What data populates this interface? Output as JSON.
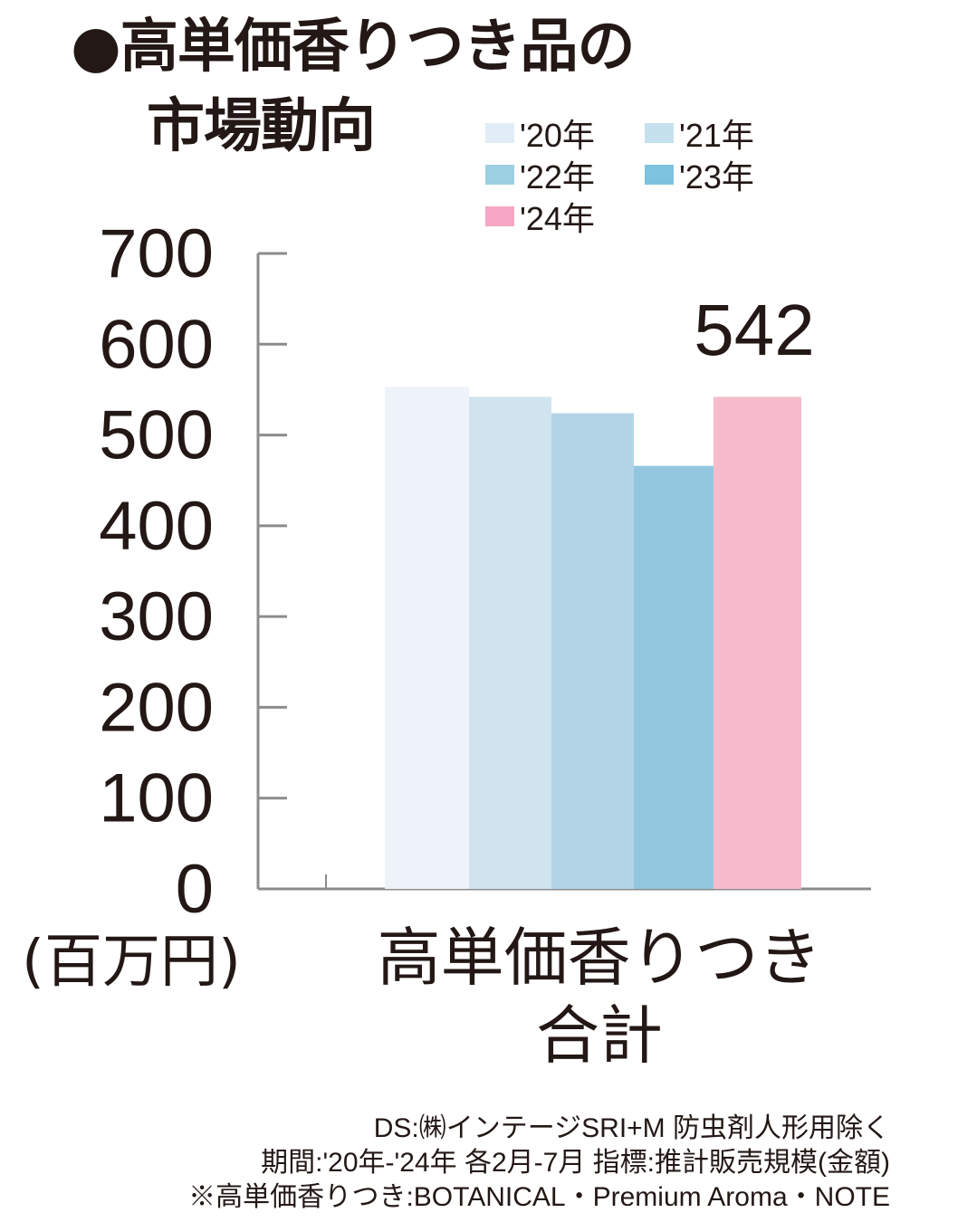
{
  "title": {
    "bullet": "●",
    "line1": "高単価香りつき品の",
    "line2": "市場動向"
  },
  "chart_data": {
    "type": "bar",
    "categories": [
      "高単価香りつき合計"
    ],
    "category_label_lines": [
      "高単価香りつき",
      "合計"
    ],
    "series": [
      {
        "name": "'20年",
        "values": [
          553
        ],
        "color": "#eef2f9"
      },
      {
        "name": "'21年",
        "values": [
          542
        ],
        "color": "#d0e4f0"
      },
      {
        "name": "'22年",
        "values": [
          524
        ],
        "color": "#b3d4e7"
      },
      {
        "name": "'23年",
        "values": [
          466
        ],
        "color": "#93c6df"
      },
      {
        "name": "'24年",
        "values": [
          542
        ],
        "color": "#f6bccb"
      }
    ],
    "legend_colors": [
      "#e1ecf6",
      "#c5e1ee",
      "#9dd0e3",
      "#7ec3de",
      "#f7a6c6"
    ],
    "ylim": [
      0,
      700
    ],
    "yticks": [
      0,
      100,
      200,
      300,
      400,
      500,
      600,
      700
    ],
    "ylabel": "(百万円)",
    "xlabel": "",
    "value_label": "542",
    "grid": false,
    "legend_position": "top-right"
  },
  "source": {
    "line1": "DS:㈱インテージSRI+M 防虫剤人形用除く",
    "line2": "期間:'20年-'24年 各2月-7月 指標:推計販売規模(金額)",
    "line3": "※高単価香りつき:BOTANICAL・Premium Aroma・NOTE"
  }
}
